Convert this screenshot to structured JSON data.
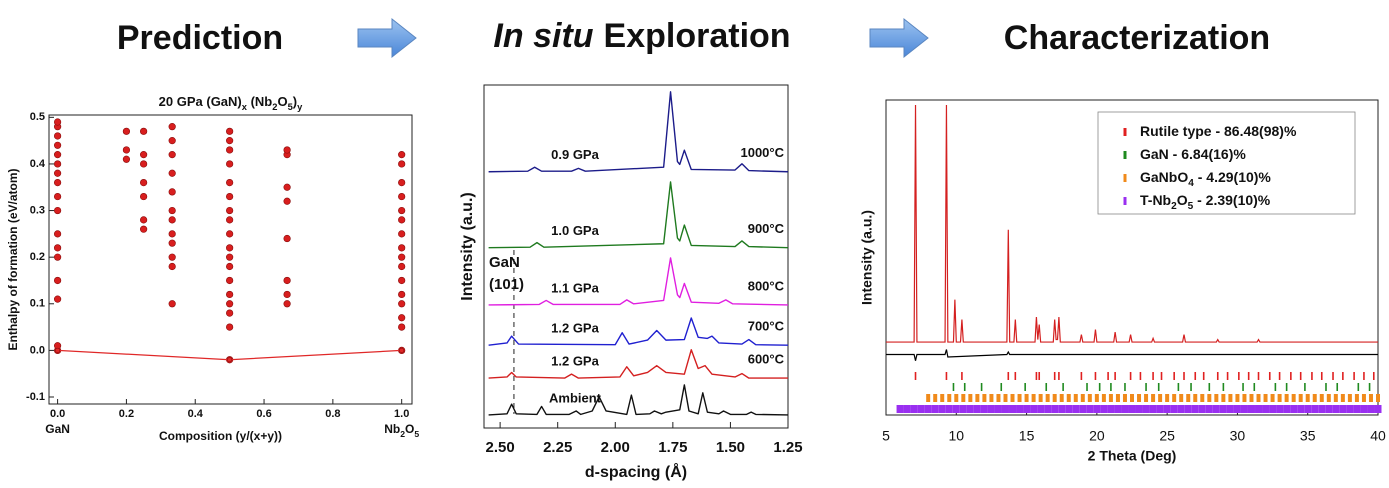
{
  "headings": [
    "Prediction",
    "In situ",
    "Exploration",
    "Characterization"
  ],
  "chart_data": [
    {
      "type": "scatter",
      "title": [
        "20 GPa (GaN)",
        "x",
        " (Nb",
        "2",
        "O",
        "5",
        ")",
        "y"
      ],
      "x_label": "Composition (y/(x+y))",
      "y_label": "Enthalpy of formation (eV/atom)",
      "end_labels": [
        [
          "GaN"
        ],
        [
          "Nb",
          "2",
          "O",
          "5"
        ]
      ],
      "xlim": [
        -0.025,
        1.03
      ],
      "ylim": [
        -0.115,
        0.505
      ],
      "xticks": [
        {
          "value": 0,
          "label": "0.0"
        },
        0.2,
        0.4,
        0.6,
        0.8,
        {
          "value": 1,
          "label": "1.0"
        }
      ],
      "yticks": [
        -0.1,
        {
          "value": 0,
          "label": "0.0"
        },
        0.1,
        0.2,
        0.3,
        0.4,
        0.5
      ],
      "series": [
        {
          "mode": "markers",
          "color": "#d81e1e",
          "x": [
            0,
            0,
            0,
            0,
            0,
            0,
            0,
            0,
            0,
            0,
            0,
            0,
            0,
            0,
            0,
            0,
            0,
            0.2,
            0.2,
            0.2,
            0.25,
            0.25,
            0.25,
            0.25,
            0.25,
            0.25,
            0.25,
            0.333,
            0.333,
            0.333,
            0.333,
            0.333,
            0.333,
            0.333,
            0.333,
            0.333,
            0.333,
            0.333,
            0.333,
            0.5,
            0.5,
            0.5,
            0.5,
            0.5,
            0.5,
            0.5,
            0.5,
            0.5,
            0.5,
            0.5,
            0.5,
            0.5,
            0.5,
            0.5,
            0.5,
            0.5,
            0.5,
            0.667,
            0.667,
            0.667,
            0.667,
            0.667,
            0.667,
            0.667,
            0.667,
            1,
            1,
            1,
            1,
            1,
            1,
            1,
            1,
            1,
            1,
            1,
            1,
            1,
            1,
            1,
            1
          ],
          "values": [
            0.0,
            0.01,
            0.11,
            0.15,
            0.2,
            0.22,
            0.25,
            0.3,
            0.33,
            0.36,
            0.38,
            0.4,
            0.42,
            0.44,
            0.46,
            0.48,
            0.49,
            0.41,
            0.43,
            0.47,
            0.26,
            0.28,
            0.33,
            0.36,
            0.4,
            0.42,
            0.47,
            0.1,
            0.18,
            0.2,
            0.23,
            0.25,
            0.28,
            0.3,
            0.34,
            0.38,
            0.42,
            0.45,
            0.48,
            -0.02,
            0.05,
            0.08,
            0.1,
            0.12,
            0.15,
            0.18,
            0.2,
            0.22,
            0.25,
            0.28,
            0.3,
            0.33,
            0.36,
            0.4,
            0.43,
            0.45,
            0.47,
            0.1,
            0.12,
            0.15,
            0.24,
            0.32,
            0.35,
            0.42,
            0.43,
            0.0,
            0.05,
            0.07,
            0.1,
            0.12,
            0.15,
            0.18,
            0.2,
            0.22,
            0.25,
            0.28,
            0.3,
            0.33,
            0.36,
            0.4,
            0.42
          ]
        },
        {
          "mode": "lines+markers",
          "color": "#e02828",
          "x": [
            0,
            0.5,
            1
          ],
          "values": [
            0,
            -0.02,
            0
          ]
        }
      ]
    },
    {
      "type": "line",
      "x_label": "d-spacing (Å)",
      "y_label": "Intensity (a.u.)",
      "xlim": [
        2.57,
        1.25
      ],
      "ylim": [
        0,
        6.05
      ],
      "xticks": [
        {
          "value": 2.5,
          "label": "2.50"
        },
        2.25,
        {
          "value": 2,
          "label": "2.00"
        },
        1.75,
        {
          "value": 1.5,
          "label": "1.50"
        },
        1.25
      ],
      "annotation": {
        "text": [
          "GaN",
          "(101)"
        ],
        "x": 2.44
      },
      "series": [
        {
          "name": "0.9 GPa",
          "label": "1000°C",
          "color": "#1c1c8a",
          "x": [
            2.55,
            2.38,
            2.35,
            2.32,
            2.19,
            2.16,
            2.13,
            1.79,
            1.76,
            1.73,
            1.72,
            1.7,
            1.67,
            1.48,
            1.45,
            1.42,
            1.25
          ],
          "values": [
            4.52,
            4.53,
            4.6,
            4.53,
            4.53,
            4.58,
            4.53,
            4.6,
            5.93,
            4.7,
            4.65,
            4.9,
            4.56,
            4.55,
            4.66,
            4.54,
            4.52
          ]
        },
        {
          "name": "1.0 GPa",
          "label": "900°C",
          "color": "#1f7a1f",
          "x": [
            2.55,
            2.37,
            2.34,
            2.31,
            1.79,
            1.76,
            1.73,
            1.72,
            1.7,
            1.67,
            1.48,
            1.45,
            1.42,
            1.25
          ],
          "values": [
            3.18,
            3.19,
            3.27,
            3.19,
            3.25,
            4.34,
            3.35,
            3.3,
            3.58,
            3.22,
            3.2,
            3.3,
            3.2,
            3.18
          ]
        },
        {
          "name": "1.1 GPa",
          "label": "800°C",
          "color": "#e01fe0",
          "x": [
            2.55,
            2.33,
            2.3,
            2.27,
            1.98,
            1.95,
            1.92,
            1.79,
            1.76,
            1.73,
            1.72,
            1.7,
            1.67,
            1.55,
            1.52,
            1.49,
            1.25
          ],
          "values": [
            2.17,
            2.18,
            2.25,
            2.18,
            2.18,
            2.26,
            2.19,
            2.25,
            3.0,
            2.35,
            2.3,
            2.55,
            2.22,
            2.2,
            2.26,
            2.19,
            2.17
          ]
        },
        {
          "name": "1.2 GPa",
          "label": "700°C",
          "color": "#2020d0",
          "x": [
            2.55,
            2.47,
            2.45,
            2.42,
            2.0,
            1.97,
            1.94,
            1.86,
            1.82,
            1.78,
            1.7,
            1.67,
            1.64,
            1.6,
            1.58,
            1.55,
            1.45,
            1.42,
            1.39,
            1.25
          ],
          "values": [
            1.46,
            1.5,
            1.62,
            1.48,
            1.47,
            1.68,
            1.48,
            1.55,
            1.72,
            1.55,
            1.56,
            1.94,
            1.6,
            1.58,
            1.62,
            1.5,
            1.48,
            1.56,
            1.47,
            1.46
          ]
        },
        {
          "name": "1.2 GPa",
          "label": "600°C",
          "color": "#d42020",
          "x": [
            2.55,
            2.47,
            2.45,
            2.43,
            2.22,
            2.19,
            2.16,
            1.98,
            1.95,
            1.92,
            1.86,
            1.82,
            1.78,
            1.7,
            1.67,
            1.64,
            1.61,
            1.58,
            1.48,
            1.45,
            1.42,
            1.25
          ],
          "values": [
            0.88,
            0.9,
            0.98,
            0.9,
            0.88,
            0.95,
            0.88,
            0.9,
            1.08,
            0.92,
            0.98,
            1.1,
            0.98,
            0.95,
            1.38,
            1.05,
            1.1,
            0.95,
            0.9,
            0.96,
            0.88,
            0.88
          ]
        },
        {
          "name": "Ambient",
          "color": "#111111",
          "x": [
            2.55,
            2.47,
            2.45,
            2.43,
            2.34,
            2.32,
            2.3,
            2.2,
            2.17,
            2.15,
            2.1,
            2.07,
            2.04,
            1.95,
            1.93,
            1.91,
            1.85,
            1.83,
            1.8,
            1.78,
            1.72,
            1.7,
            1.68,
            1.64,
            1.62,
            1.6,
            1.55,
            1.53,
            1.5,
            1.43,
            1.41,
            1.39,
            1.25
          ],
          "values": [
            0.23,
            0.25,
            0.42,
            0.25,
            0.24,
            0.38,
            0.24,
            0.24,
            0.3,
            0.24,
            0.3,
            0.55,
            0.3,
            0.24,
            0.58,
            0.24,
            0.25,
            0.3,
            0.25,
            0.28,
            0.32,
            0.76,
            0.3,
            0.25,
            0.62,
            0.28,
            0.25,
            0.3,
            0.24,
            0.24,
            0.28,
            0.24,
            0.23
          ]
        }
      ]
    },
    {
      "type": "rietveld",
      "x_label": "2 Theta (Deg)",
      "y_label": "Intensity (a.u.)",
      "xlim": [
        5,
        40
      ],
      "ylim": [
        -0.05,
        1
      ],
      "xticks": [
        5,
        10,
        15,
        20,
        25,
        30,
        35,
        40
      ],
      "pattern": {
        "color": "#d42020",
        "x": [
          5,
          7.0,
          7.1,
          7.2,
          9.2,
          9.3,
          9.4,
          9.8,
          9.9,
          10.0,
          10.3,
          10.4,
          10.5,
          13.6,
          13.7,
          13.8,
          14.1,
          14.2,
          14.3,
          15.6,
          15.7,
          15.8,
          15.9,
          16.0,
          16.9,
          17.0,
          17.1,
          17.2,
          17.3,
          17.4,
          18.8,
          18.9,
          19.0,
          19.8,
          19.9,
          20.0,
          21.2,
          21.3,
          21.4,
          22.3,
          22.4,
          22.5,
          23.9,
          24.0,
          24.1,
          26.1,
          26.2,
          26.3,
          28.5,
          28.6,
          28.7,
          31.4,
          31.5,
          31.6,
          40
        ],
        "values": [
          0.03,
          0.03,
          0.98,
          0.03,
          0.03,
          0.98,
          0.03,
          0.03,
          0.2,
          0.03,
          0.03,
          0.12,
          0.03,
          0.03,
          0.48,
          0.03,
          0.03,
          0.12,
          0.03,
          0.03,
          0.13,
          0.04,
          0.1,
          0.03,
          0.03,
          0.12,
          0.04,
          0.04,
          0.13,
          0.03,
          0.03,
          0.06,
          0.03,
          0.03,
          0.08,
          0.03,
          0.03,
          0.07,
          0.03,
          0.03,
          0.06,
          0.03,
          0.03,
          0.045,
          0.03,
          0.03,
          0.06,
          0.03,
          0.03,
          0.04,
          0.03,
          0.03,
          0.04,
          0.03,
          0.03
        ]
      },
      "difference": {
        "color": "#000000",
        "x": [
          5,
          7.0,
          7.1,
          7.2,
          9.2,
          9.3,
          9.4,
          13.6,
          13.7,
          13.8,
          40
        ],
        "values": [
          -0.02,
          -0.02,
          -0.045,
          -0.02,
          -0.02,
          0.0,
          -0.03,
          -0.02,
          -0.01,
          -0.02,
          -0.02
        ]
      },
      "phases": [
        {
          "name": [
            "Rutile type - 86.48(98)%"
          ],
          "color": "#e02020",
          "positions": [
            7.1,
            9.3,
            10.4,
            13.7,
            14.2,
            15.7,
            15.9,
            17.0,
            17.3,
            18.9,
            19.9,
            20.8,
            21.3,
            22.4,
            23.1,
            24.0,
            24.6,
            25.5,
            26.2,
            27.0,
            27.6,
            28.6,
            29.3,
            30.1,
            30.8,
            31.5,
            32.3,
            33.0,
            33.8,
            34.5,
            35.3,
            36.0,
            36.8,
            37.5,
            38.3,
            39.0,
            39.7
          ]
        },
        {
          "name": [
            "GaN - 6.84(16)%"
          ],
          "color": "#1f8a1f",
          "positions": [
            9.8,
            10.6,
            11.8,
            13.2,
            14.9,
            16.4,
            17.6,
            19.3,
            20.2,
            21.0,
            22.0,
            23.5,
            24.4,
            25.8,
            26.7,
            28.0,
            29.0,
            30.4,
            31.2,
            32.7,
            33.5,
            34.8,
            36.3,
            37.1,
            38.6,
            39.4
          ]
        },
        {
          "name": [
            "GaNbO",
            "4",
            " - 4.29(10)%"
          ],
          "color": "#f08a1a",
          "positions": [
            8,
            8.5,
            9,
            9.5,
            10,
            10.5,
            11,
            11.5,
            12,
            12.5,
            13,
            13.5,
            14,
            14.5,
            15,
            15.5,
            16,
            16.5,
            17,
            17.5,
            18,
            18.5,
            19,
            19.5,
            20,
            20.5,
            21,
            21.5,
            22,
            22.5,
            23,
            23.5,
            24,
            24.5,
            25,
            25.5,
            26,
            26.5,
            27,
            27.5,
            28,
            28.5,
            29,
            29.5,
            30,
            30.5,
            31,
            31.5,
            32,
            32.5,
            33,
            33.5,
            34,
            34.5,
            35,
            35.5,
            36,
            36.5,
            37,
            37.5,
            38,
            38.5,
            39,
            39.5,
            40
          ]
        },
        {
          "name": [
            "T-Nb",
            "2",
            "O",
            "5",
            " - 2.39(10)%"
          ],
          "color": "#9a2ff0",
          "positions": [
            6,
            6.5,
            7,
            7.5,
            8,
            8.5,
            9,
            9.5,
            10,
            10.5,
            11,
            11.5,
            12,
            12.5,
            13,
            13.5,
            14,
            14.5,
            15,
            15.5,
            16,
            16.5,
            17,
            17.5,
            18,
            18.5,
            19,
            19.5,
            20,
            20.5,
            21,
            21.5,
            22,
            22.5,
            23,
            23.5,
            24,
            24.5,
            25,
            25.5,
            26,
            26.5,
            27,
            27.5,
            28,
            28.5,
            29,
            29.5,
            30,
            30.5,
            31,
            31.5,
            32,
            32.5,
            33,
            33.5,
            34,
            34.5,
            35,
            35.5,
            36,
            36.5,
            37,
            37.5,
            38,
            38.5,
            39,
            39.5,
            40
          ]
        }
      ]
    }
  ]
}
